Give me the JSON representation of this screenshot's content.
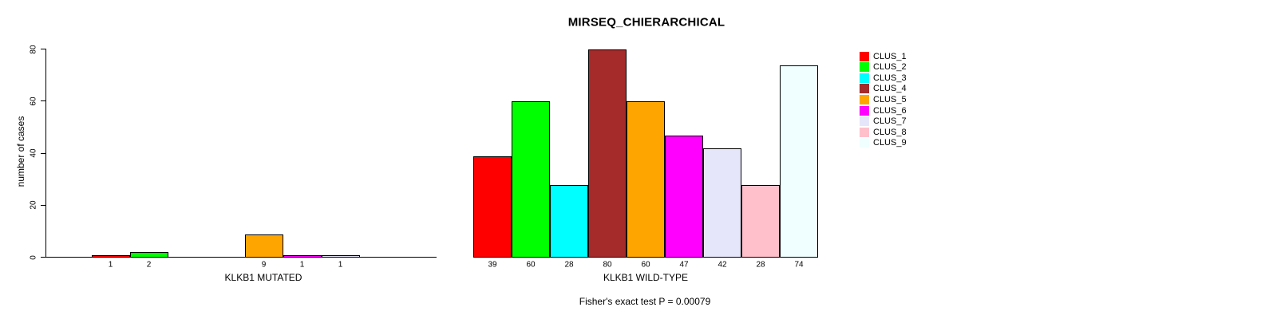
{
  "chart_data": {
    "type": "bar",
    "title": "MIRSEQ_CHIERARCHICAL",
    "ylabel": "number of cases",
    "ylim": [
      0,
      80
    ],
    "yticks": [
      0,
      20,
      40,
      60,
      80
    ],
    "grid": false,
    "legend_position": "right",
    "legend_entries": [
      "CLUS_1",
      "CLUS_2",
      "CLUS_3",
      "CLUS_4",
      "CLUS_5",
      "CLUS_6",
      "CLUS_7",
      "CLUS_8",
      "CLUS_9"
    ],
    "colors": [
      "#FF0000",
      "#00FF00",
      "#00FFFF",
      "#A52A2A",
      "#FFA500",
      "#FF00FF",
      "#E6E6FA",
      "#FFC0CB",
      "#F0FFFF"
    ],
    "panels": [
      {
        "xlabel": "KLKB1 MUTATED",
        "categories": [
          "CLUS_1",
          "CLUS_2",
          "CLUS_3",
          "CLUS_4",
          "CLUS_5",
          "CLUS_6",
          "CLUS_7",
          "CLUS_8",
          "CLUS_9"
        ],
        "values": [
          1,
          2,
          0,
          0,
          9,
          1,
          1,
          0,
          0
        ]
      },
      {
        "xlabel": "KLKB1 WILD-TYPE",
        "categories": [
          "CLUS_1",
          "CLUS_2",
          "CLUS_3",
          "CLUS_4",
          "CLUS_5",
          "CLUS_6",
          "CLUS_7",
          "CLUS_8",
          "CLUS_9"
        ],
        "values": [
          39,
          60,
          28,
          80,
          60,
          47,
          42,
          28,
          74
        ]
      }
    ],
    "caption": "Fisher's exact test P = 0.00079"
  }
}
